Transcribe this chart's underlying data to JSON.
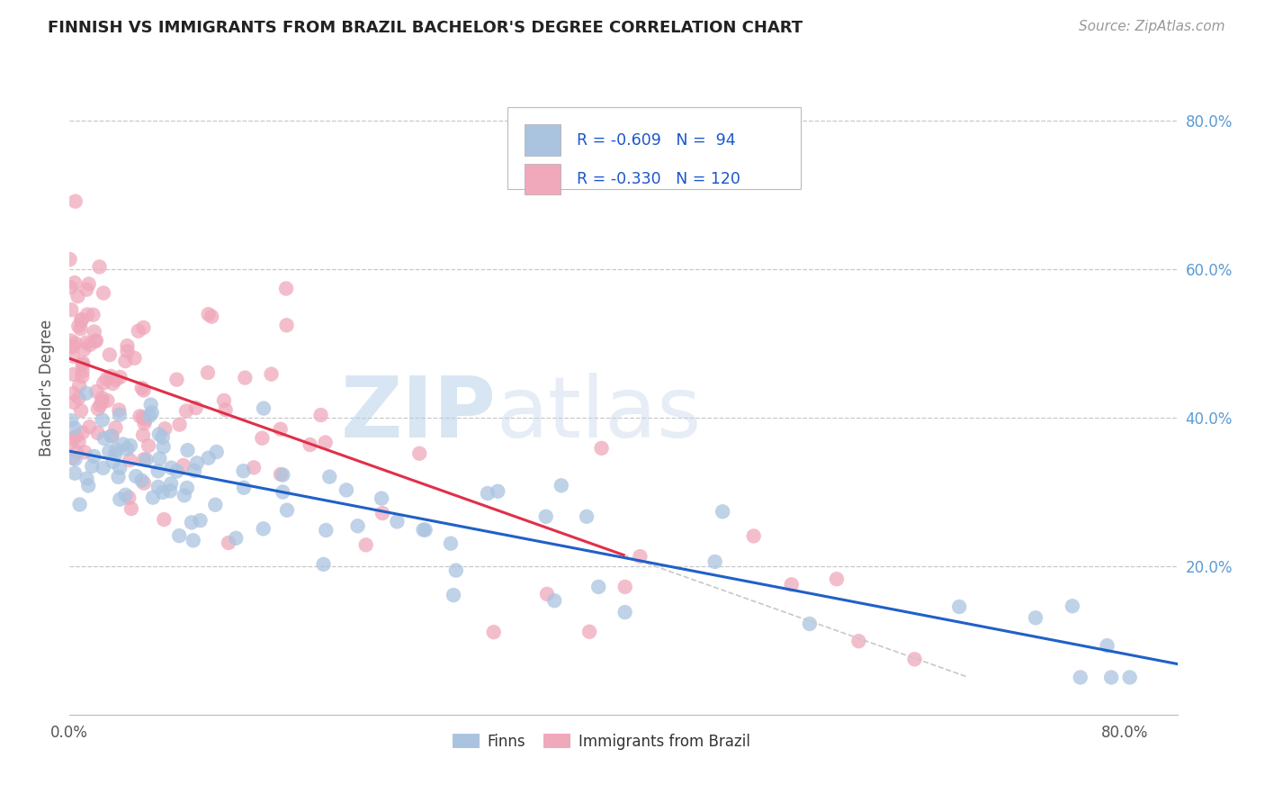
{
  "title": "FINNISH VS IMMIGRANTS FROM BRAZIL BACHELOR'S DEGREE CORRELATION CHART",
  "source": "Source: ZipAtlas.com",
  "ylabel": "Bachelor's Degree",
  "yticks": [
    "20.0%",
    "40.0%",
    "60.0%",
    "80.0%"
  ],
  "ytick_vals": [
    0.2,
    0.4,
    0.6,
    0.8
  ],
  "xrange": [
    0.0,
    0.84
  ],
  "yrange": [
    0.0,
    0.88
  ],
  "legend_r1": "-0.609",
  "legend_n1": "94",
  "legend_r2": "-0.330",
  "legend_n2": "120",
  "color_finns": "#aac4e0",
  "color_brazil": "#f0a8bb",
  "color_trendline_finns": "#2060c8",
  "color_trendline_brazil": "#e0304a",
  "background_color": "#ffffff",
  "grid_color": "#c8c8c8",
  "watermark_zip": "ZIP",
  "watermark_atlas": "atlas",
  "finns_trendline_x0": 0.0,
  "finns_trendline_y0": 0.355,
  "finns_trendline_x1": 0.84,
  "finns_trendline_y1": 0.068,
  "brazil_trendline_x0": 0.0,
  "brazil_trendline_y0": 0.48,
  "brazil_trendline_x1": 0.42,
  "brazil_trendline_y1": 0.215
}
